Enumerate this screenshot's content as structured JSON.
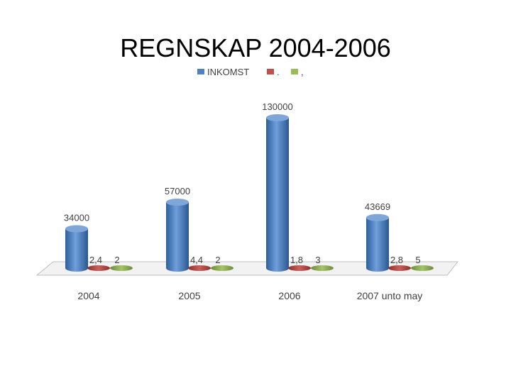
{
  "chart_data": {
    "type": "bar",
    "title": "REGNSKAP 2004-2006",
    "categories": [
      "2004",
      "2005",
      "2006",
      "2007 unto may"
    ],
    "series": [
      {
        "name": "INKOMST",
        "values": [
          34000,
          57000,
          130000,
          43669
        ],
        "labels": [
          "34000",
          "57000",
          "130000",
          "43669"
        ],
        "color": "#4f81bd"
      },
      {
        "name": ".",
        "values": [
          2.4,
          4.4,
          1.8,
          2.8
        ],
        "labels": [
          "2,4",
          "4,4",
          "1,8",
          "2,8"
        ],
        "color": "#c0504d"
      },
      {
        "name": ",",
        "values": [
          2,
          2,
          3,
          5
        ],
        "labels": [
          "2",
          "2",
          "3",
          "5"
        ],
        "color": "#9bbb59"
      }
    ],
    "ylim": [
      0,
      130000
    ],
    "legend_position": "top",
    "grid": false,
    "style": "3d-cylinder"
  }
}
